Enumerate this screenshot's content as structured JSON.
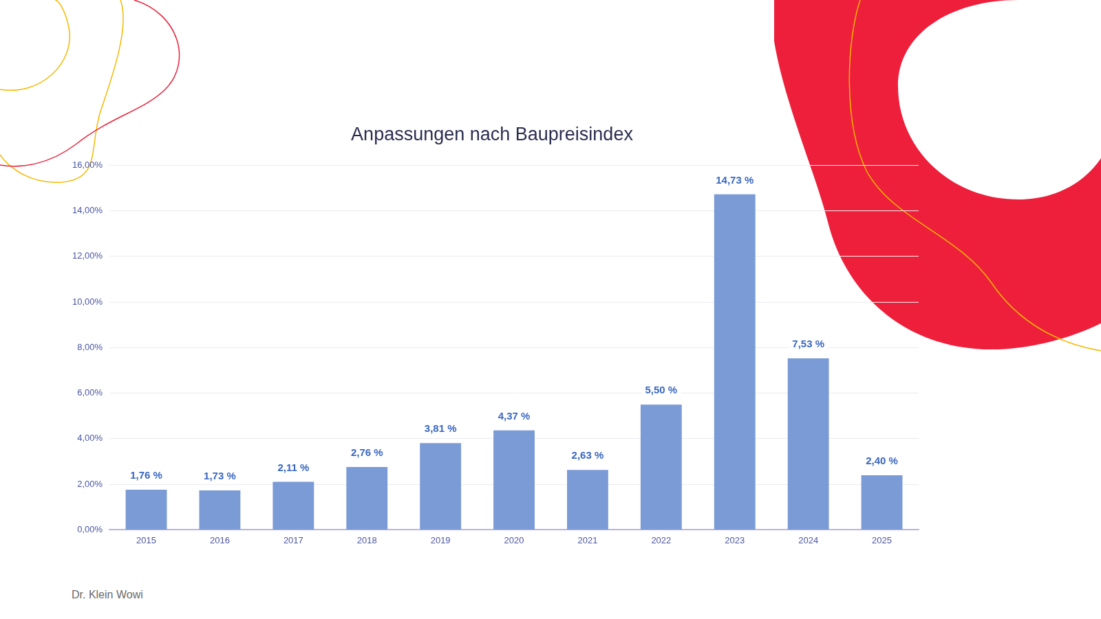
{
  "chart_data": {
    "type": "bar",
    "title": "Anpassungen nach Baupreisindex",
    "categories": [
      "2015",
      "2016",
      "2017",
      "2018",
      "2019",
      "2020",
      "2021",
      "2022",
      "2023",
      "2024",
      "2025"
    ],
    "values": [
      1.76,
      1.73,
      2.11,
      2.76,
      3.81,
      4.37,
      2.63,
      5.5,
      14.73,
      7.53,
      2.4
    ],
    "value_labels": [
      "1,76 %",
      "1,73 %",
      "2,11 %",
      "2,76 %",
      "3,81 %",
      "4,37 %",
      "2,63 %",
      "5,50 %",
      "14,73 %",
      "7,53 %",
      "2,40 %"
    ],
    "color": "#7b9bd6",
    "ylim": [
      0,
      16
    ],
    "yticks": [
      {
        "value": 0,
        "label": "0,00%"
      },
      {
        "value": 2,
        "label": "2,00%"
      },
      {
        "value": 4,
        "label": "4,00%"
      },
      {
        "value": 6,
        "label": "6,00%"
      },
      {
        "value": 8,
        "label": "8,00%"
      },
      {
        "value": 10,
        "label": "10,00%"
      },
      {
        "value": 12,
        "label": "12,00%"
      },
      {
        "value": 14,
        "label": "14,00%"
      },
      {
        "value": 16,
        "label": "16,00%"
      }
    ],
    "grid": true,
    "data_labels": true
  },
  "footer": "Dr. Klein Wowi"
}
